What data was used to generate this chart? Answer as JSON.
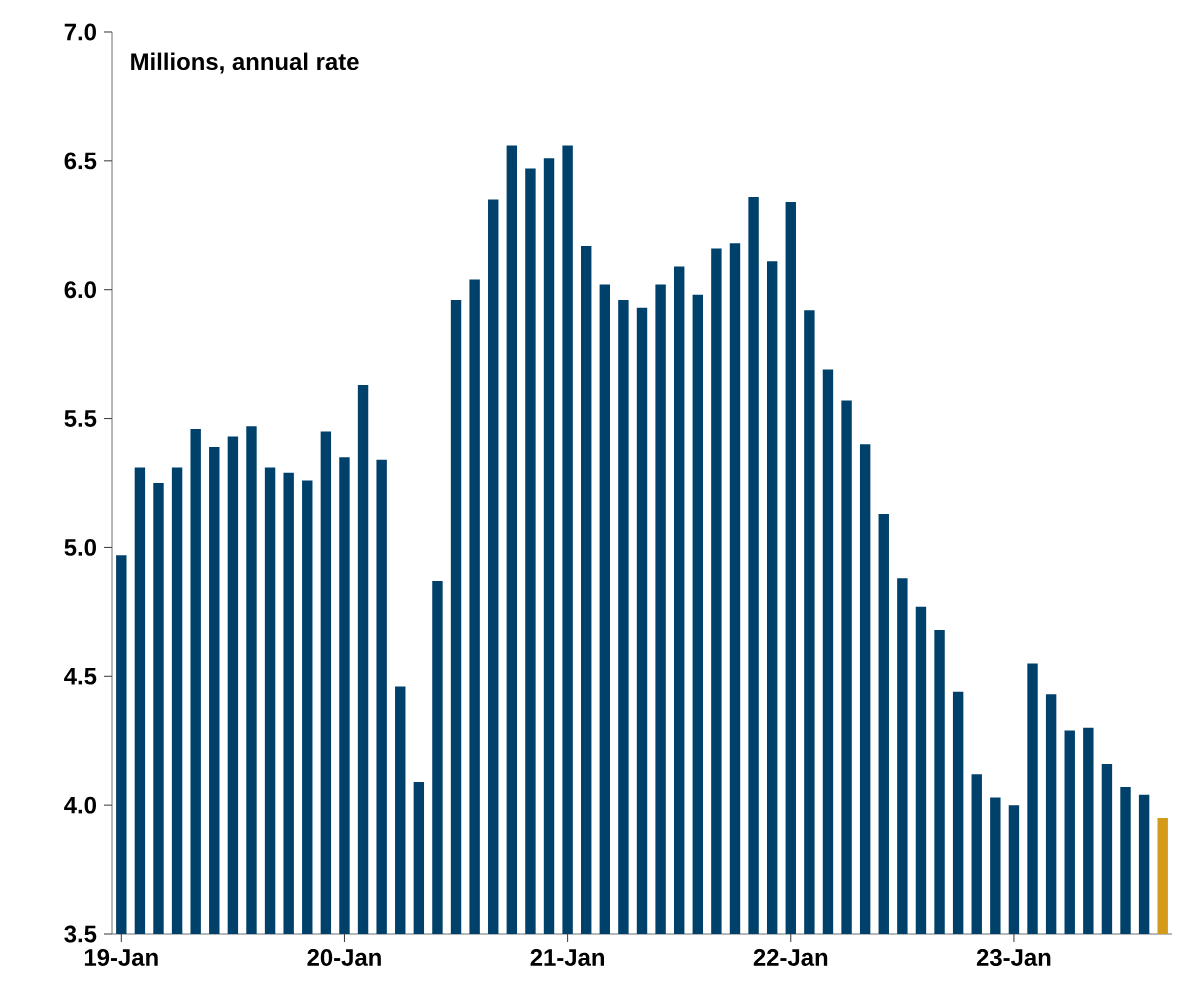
{
  "chart_data": {
    "type": "bar",
    "ylabel": "Millions, annual rate",
    "categories": [
      "19-Jan",
      null,
      null,
      null,
      null,
      null,
      null,
      null,
      null,
      null,
      null,
      null,
      "20-Jan",
      null,
      null,
      null,
      null,
      null,
      null,
      null,
      null,
      null,
      null,
      null,
      "21-Jan",
      null,
      null,
      null,
      null,
      null,
      null,
      null,
      null,
      null,
      null,
      null,
      "22-Jan",
      null,
      null,
      null,
      null,
      null,
      null,
      null,
      null,
      null,
      null,
      null,
      "23-Jan",
      null,
      null,
      null,
      null,
      null,
      null,
      null,
      null
    ],
    "values": [
      4.97,
      5.31,
      5.25,
      5.31,
      5.46,
      5.39,
      5.43,
      5.47,
      5.31,
      5.29,
      5.26,
      5.45,
      5.35,
      5.63,
      5.34,
      4.46,
      4.09,
      4.87,
      5.96,
      6.04,
      6.35,
      6.56,
      6.47,
      6.51,
      6.56,
      6.17,
      6.02,
      5.96,
      5.93,
      6.02,
      6.09,
      5.98,
      6.16,
      6.18,
      6.36,
      6.11,
      6.34,
      5.92,
      5.69,
      5.57,
      5.4,
      5.13,
      4.88,
      4.77,
      4.68,
      4.44,
      4.12,
      4.03,
      4.0,
      4.55,
      4.43,
      4.29,
      4.3,
      4.16,
      4.07,
      4.04,
      3.95
    ],
    "colors": [
      "#00416b",
      "#00416b",
      "#00416b",
      "#00416b",
      "#00416b",
      "#00416b",
      "#00416b",
      "#00416b",
      "#00416b",
      "#00416b",
      "#00416b",
      "#00416b",
      "#00416b",
      "#00416b",
      "#00416b",
      "#00416b",
      "#00416b",
      "#00416b",
      "#00416b",
      "#00416b",
      "#00416b",
      "#00416b",
      "#00416b",
      "#00416b",
      "#00416b",
      "#00416b",
      "#00416b",
      "#00416b",
      "#00416b",
      "#00416b",
      "#00416b",
      "#00416b",
      "#00416b",
      "#00416b",
      "#00416b",
      "#00416b",
      "#00416b",
      "#00416b",
      "#00416b",
      "#00416b",
      "#00416b",
      "#00416b",
      "#00416b",
      "#00416b",
      "#00416b",
      "#00416b",
      "#00416b",
      "#00416b",
      "#00416b",
      "#00416b",
      "#00416b",
      "#00416b",
      "#00416b",
      "#00416b",
      "#00416b",
      "#00416b",
      "#d49a1a"
    ],
    "ylim": [
      3.5,
      7.0
    ],
    "yticks": [
      {
        "value": 3.5,
        "label": "3.5"
      },
      {
        "value": 4.0,
        "label": "4.0"
      },
      {
        "value": 4.5,
        "label": "4.5"
      },
      {
        "value": 5.0,
        "label": "5.0"
      },
      {
        "value": 5.5,
        "label": "5.5"
      },
      {
        "value": 6.0,
        "label": "6.0"
      },
      {
        "value": 6.5,
        "label": "6.5"
      },
      {
        "value": 7.0,
        "label": "7.0"
      }
    ],
    "grid": false
  }
}
